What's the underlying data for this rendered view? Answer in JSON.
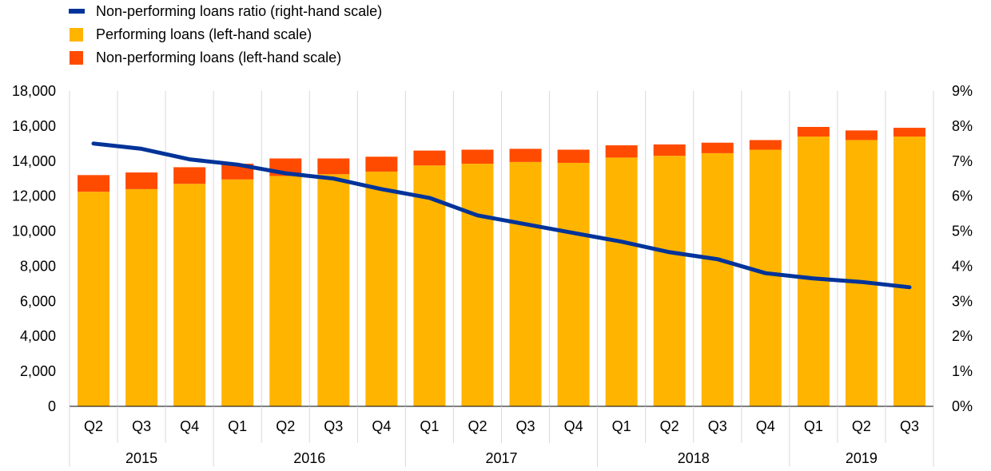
{
  "chart_data": {
    "type": "bar",
    "stacked": true,
    "legend": [
      {
        "label": "Non-performing loans ratio (right-hand scale)",
        "color": "#003399",
        "shape": "line"
      },
      {
        "label": "Performing loans (left-hand scale)",
        "color": "#FFB400",
        "shape": "square"
      },
      {
        "label": "Non-performing loans (left-hand scale)",
        "color": "#FF4B00",
        "shape": "square"
      }
    ],
    "legend_position": "top-left",
    "quarters": [
      "Q2",
      "Q3",
      "Q4",
      "Q1",
      "Q2",
      "Q3",
      "Q4",
      "Q1",
      "Q2",
      "Q3",
      "Q4",
      "Q1",
      "Q2",
      "Q3",
      "Q4",
      "Q1",
      "Q2",
      "Q3"
    ],
    "years": [
      {
        "label": "2015",
        "count": 3
      },
      {
        "label": "2016",
        "count": 4
      },
      {
        "label": "2017",
        "count": 4
      },
      {
        "label": "2018",
        "count": 4
      },
      {
        "label": "2019",
        "count": 3
      }
    ],
    "series": [
      {
        "name": "Performing loans (left-hand scale)",
        "axis": "left",
        "color": "#FFB400",
        "values": [
          12250,
          12400,
          12700,
          12950,
          13150,
          13250,
          13400,
          13750,
          13850,
          13950,
          13900,
          14200,
          14300,
          14450,
          14650,
          15400,
          15200,
          15400
        ]
      },
      {
        "name": "Non-performing loans (left-hand scale)",
        "axis": "left",
        "color": "#FF4B00",
        "values": [
          950,
          950,
          950,
          900,
          1000,
          900,
          850,
          850,
          800,
          750,
          750,
          700,
          650,
          600,
          550,
          550,
          550,
          500
        ]
      },
      {
        "name": "Non-performing loans ratio (right-hand scale)",
        "axis": "right",
        "color": "#003399",
        "type": "line",
        "values": [
          7.5,
          7.35,
          7.05,
          6.9,
          6.65,
          6.5,
          6.2,
          5.95,
          5.45,
          5.2,
          4.95,
          4.7,
          4.4,
          4.2,
          3.8,
          3.65,
          3.55,
          3.4
        ]
      }
    ],
    "y_left": {
      "min": 0,
      "max": 18000,
      "step": 2000,
      "ticks": [
        "0",
        "2,000",
        "4,000",
        "6,000",
        "8,000",
        "10,000",
        "12,000",
        "14,000",
        "16,000",
        "18,000"
      ]
    },
    "y_right": {
      "min": 0,
      "max": 9,
      "step": 1,
      "ticks": [
        "0%",
        "1%",
        "2%",
        "3%",
        "4%",
        "5%",
        "6%",
        "7%",
        "8%",
        "9%"
      ]
    },
    "grid": "vertical separators between quarters"
  }
}
